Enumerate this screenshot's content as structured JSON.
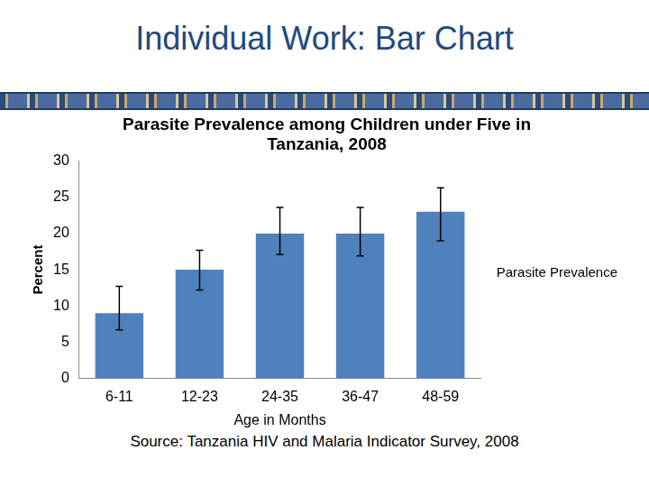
{
  "slide": {
    "title": "Individual Work: Bar Chart",
    "source": "Source: Tanzania HIV and Malaria Indicator Survey, 2008"
  },
  "chart_data": {
    "type": "bar",
    "title": [
      "Parasite Prevalence among Children under Five in",
      "Tanzania, 2008"
    ],
    "xlabel": "Age in Months",
    "ylabel": "Percent",
    "categories": [
      "6-11",
      "12-23",
      "24-35",
      "36-47",
      "48-59"
    ],
    "series": [
      {
        "name": "Parasite Prevalence",
        "color": "#4f81bd",
        "values": [
          9,
          15,
          20,
          20,
          23
        ]
      }
    ],
    "error_bars": {
      "low": [
        6.7,
        12.2,
        17.1,
        16.9,
        19
      ],
      "high": [
        12.7,
        17.7,
        23.6,
        23.6,
        26.3
      ]
    },
    "ylim": [
      0,
      30
    ],
    "yticks": [
      0,
      5,
      10,
      15,
      20,
      25,
      30
    ],
    "grid": false,
    "legend": "right"
  }
}
